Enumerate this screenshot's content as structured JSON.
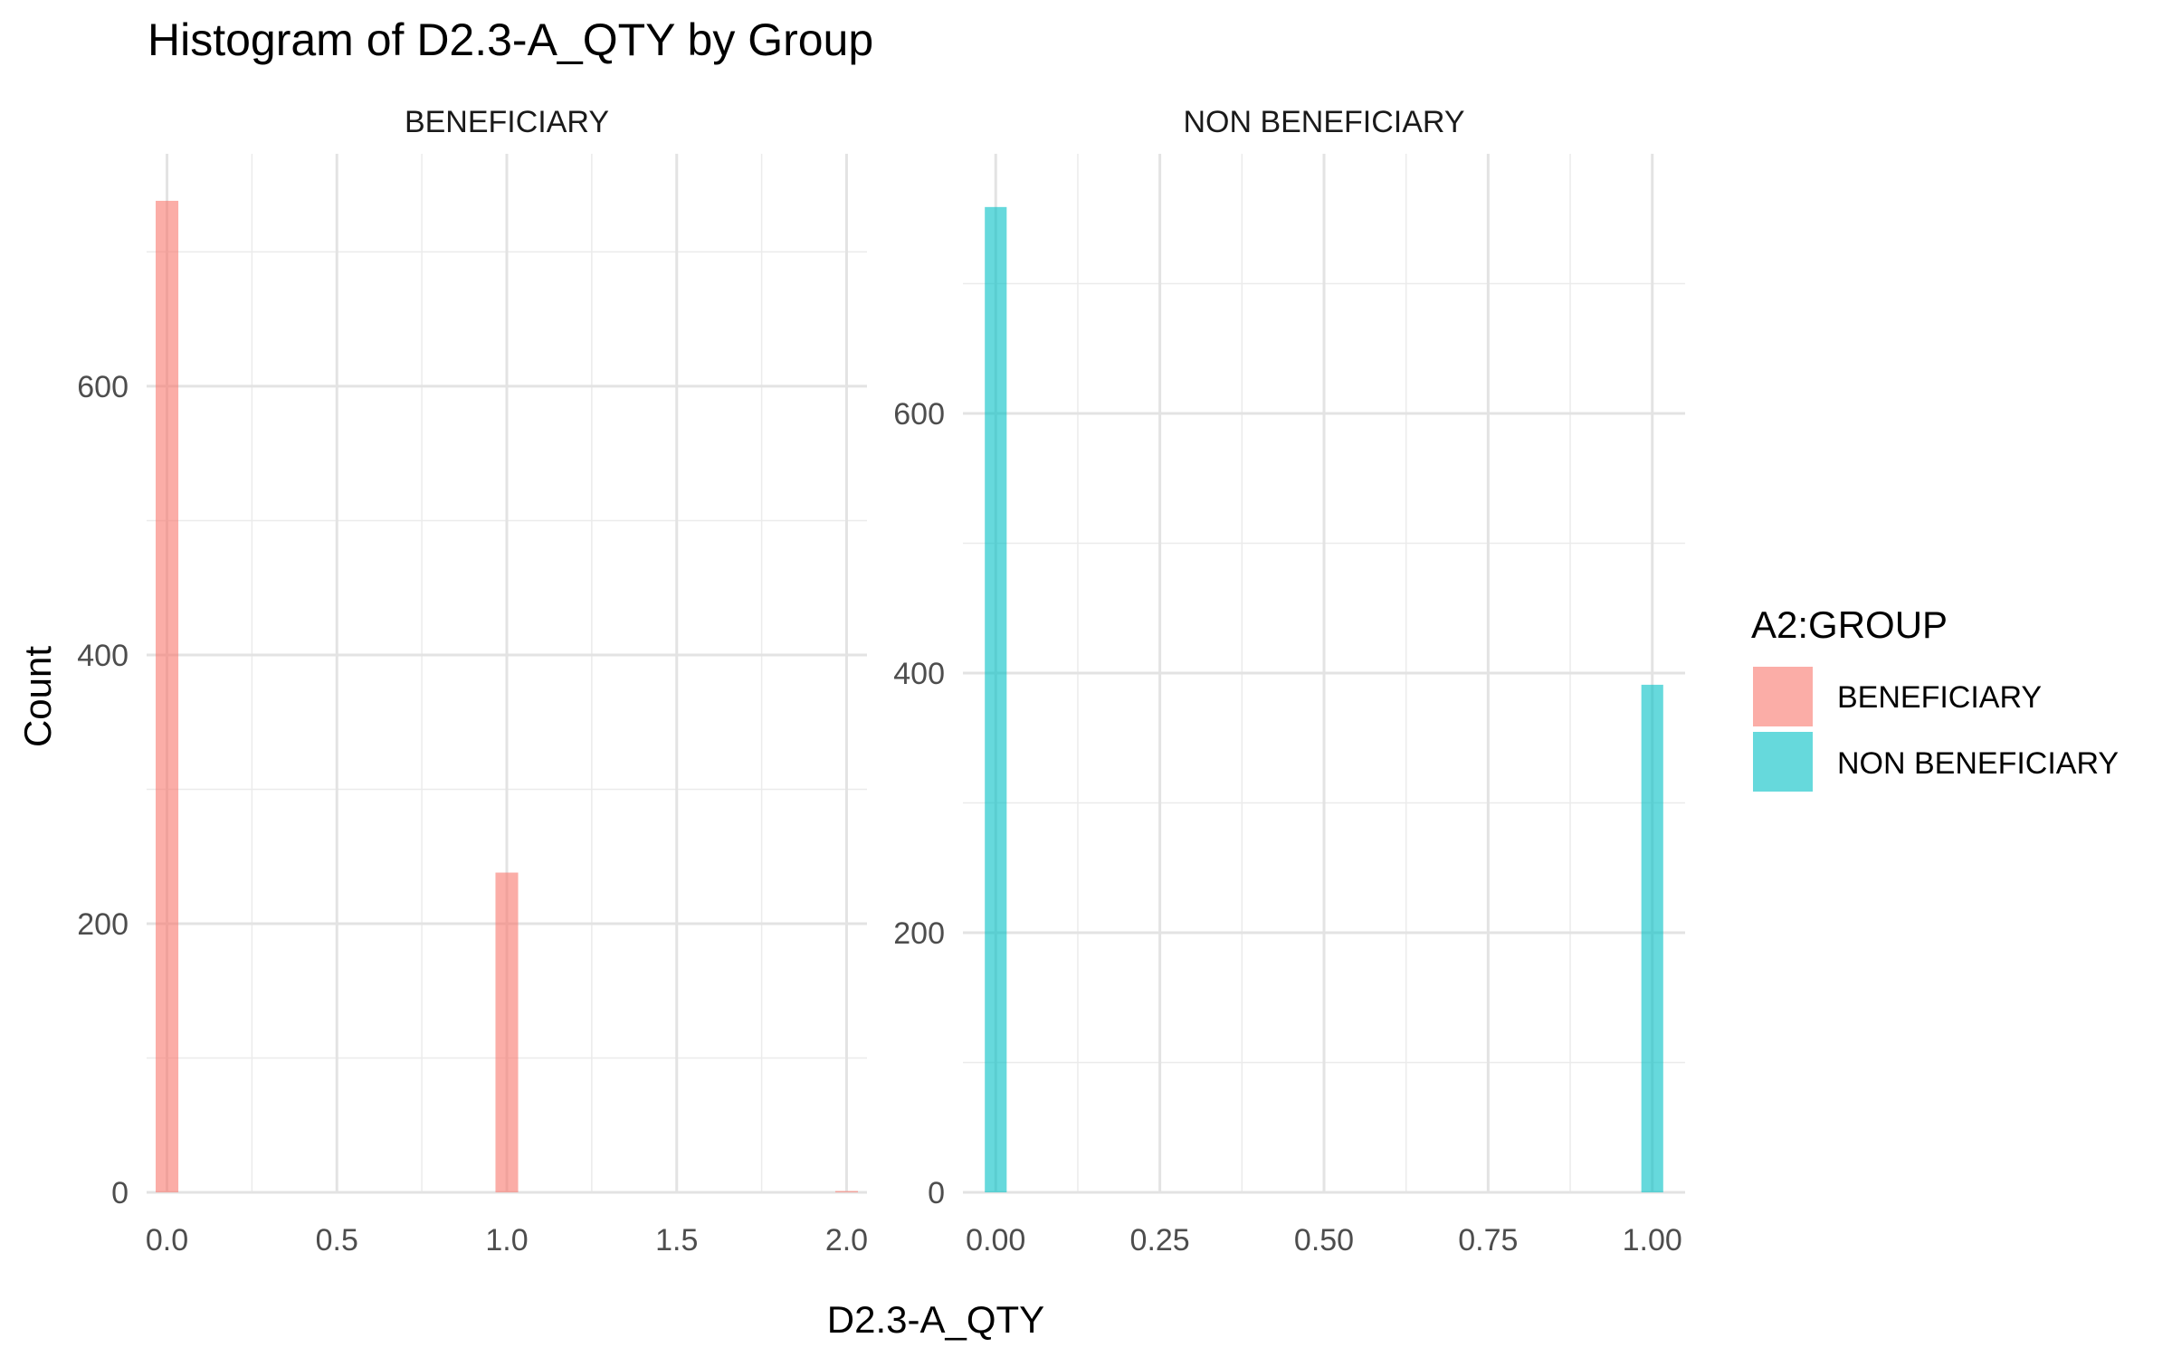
{
  "chart_data": {
    "type": "bar",
    "title": "Histogram of D2.3-A_QTY by Group",
    "xlabel": "D2.3-A_QTY",
    "ylabel": "Count",
    "legend": {
      "title": "A2:GROUP",
      "position": "right",
      "entries": [
        {
          "label": "BENEFICIARY",
          "color": "#F8766D"
        },
        {
          "label": "NON BENEFICIARY",
          "color": "#00BFC4"
        }
      ]
    },
    "grid": true,
    "panels": [
      {
        "strip": "BENEFICIARY",
        "color": "#F8766D",
        "xlim": [
          -0.06,
          2.06
        ],
        "ylim": [
          0,
          773
        ],
        "x_ticks": [
          0,
          0.5,
          1,
          1.5,
          2
        ],
        "x_tick_labels": [
          "0.0",
          "0.5",
          "1.0",
          "1.5",
          "2.0"
        ],
        "y_ticks": [
          0,
          200,
          400,
          600
        ],
        "y_tick_labels": [
          "0",
          "200",
          "400",
          "600"
        ],
        "bin_width": 0.0667,
        "bars": [
          {
            "x": 0,
            "count": 738
          },
          {
            "x": 1,
            "count": 238
          },
          {
            "x": 2,
            "count": 1
          }
        ]
      },
      {
        "strip": "NON BENEFICIARY",
        "color": "#00BFC4",
        "xlim": [
          -0.05,
          1.05
        ],
        "ylim": [
          0,
          800
        ],
        "x_ticks": [
          0,
          0.25,
          0.5,
          0.75,
          1
        ],
        "x_tick_labels": [
          "0.00",
          "0.25",
          "0.50",
          "0.75",
          "1.00"
        ],
        "y_ticks": [
          0,
          200,
          400,
          600
        ],
        "y_tick_labels": [
          "0",
          "200",
          "400",
          "600"
        ],
        "bin_width": 0.0333,
        "bars": [
          {
            "x": 0,
            "count": 759
          },
          {
            "x": 1,
            "count": 391
          }
        ]
      }
    ]
  }
}
